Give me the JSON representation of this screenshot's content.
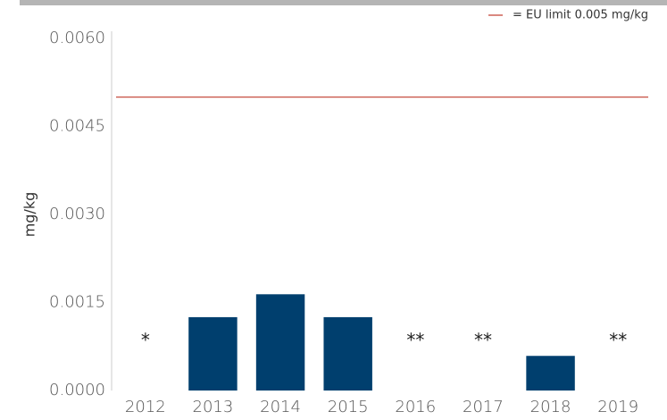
{
  "chart_data": {
    "type": "bar",
    "y_label": "mg/kg",
    "categories": [
      "2012",
      "2013",
      "2014",
      "2015",
      "2016",
      "2017",
      "2018",
      "2019"
    ],
    "values": [
      null,
      0.00125,
      0.00164,
      0.00125,
      null,
      null,
      0.00059,
      null
    ],
    "annotations": [
      "*",
      null,
      null,
      null,
      "**",
      "**",
      null,
      "**"
    ],
    "color": "#003f6e",
    "ylim": [
      0,
      0.006
    ],
    "yticks": [
      {
        "value": 0,
        "label": "0.0000"
      },
      {
        "value": 0.0015,
        "label": "0.0015"
      },
      {
        "value": 0.003,
        "label": "0.0030"
      },
      {
        "value": 0.0045,
        "label": "0.0045"
      },
      {
        "value": 0.006,
        "label": "0.0060"
      }
    ],
    "reference_line": {
      "value": 0.005,
      "label": "= EU limit 0.005 mg/kg",
      "color": "#c0392b"
    },
    "grid": false
  }
}
